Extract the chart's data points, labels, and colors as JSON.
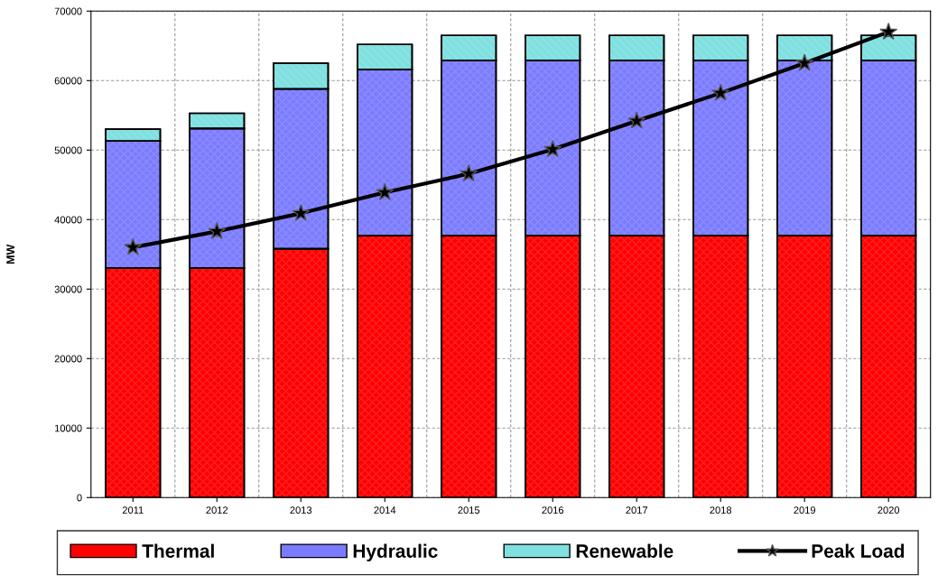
{
  "chart_data": {
    "type": "bar",
    "stacked": true,
    "ylabel": "MW",
    "categories": [
      "2011",
      "2012",
      "2013",
      "2014",
      "2015",
      "2016",
      "2017",
      "2018",
      "2019",
      "2020"
    ],
    "series": [
      {
        "name": "Thermal",
        "color": "#ff0000",
        "values": [
          33000,
          33000,
          35800,
          37700,
          37700,
          37700,
          37700,
          37700,
          37700,
          37700
        ]
      },
      {
        "name": "Hydraulic",
        "color": "#7b7bff",
        "values": [
          18300,
          20100,
          23000,
          23900,
          25200,
          25200,
          25200,
          25200,
          25200,
          25200
        ]
      },
      {
        "name": "Renewable",
        "color": "#80e0e0",
        "values": [
          1700,
          2200,
          3700,
          3600,
          3600,
          3600,
          3600,
          3600,
          3600,
          3600
        ]
      },
      {
        "name": "Peak Load",
        "type": "line",
        "color": "#000000",
        "marker": "star",
        "line_style": "solid",
        "values": [
          36000,
          38300,
          40900,
          43900,
          46600,
          50100,
          54200,
          58200,
          62500,
          67000
        ]
      }
    ],
    "ylim": [
      0,
      70000
    ],
    "yticks": [
      0,
      10000,
      20000,
      30000,
      40000,
      50000,
      60000,
      70000
    ],
    "grid": true,
    "legend": "bottom"
  }
}
